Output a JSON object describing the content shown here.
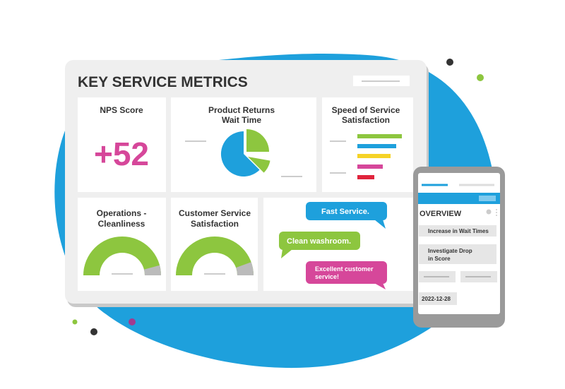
{
  "header": {
    "title": "KEY SERVICE METRICS"
  },
  "cards": [
    {
      "title": [
        "NPS Score"
      ],
      "value": "+52"
    },
    {
      "title": [
        "Product Returns",
        "Wait Time"
      ]
    },
    {
      "title": [
        "Speed of Service",
        "Satisfaction"
      ]
    },
    {
      "title": [
        "Operations -",
        "Cleanliness"
      ]
    },
    {
      "title": [
        "Customer Service",
        "Satisfaction"
      ]
    }
  ],
  "messages": [
    [
      "Fast Service."
    ],
    [
      "Clean washroom."
    ],
    [
      "Excellent customer",
      "service!"
    ]
  ],
  "phone": {
    "title": "OVERVIEW",
    "items": [
      [
        "Increase in Wait Times"
      ],
      [
        "Investigate Drop",
        "in Score"
      ],
      [
        "2022-12-28"
      ]
    ]
  }
}
